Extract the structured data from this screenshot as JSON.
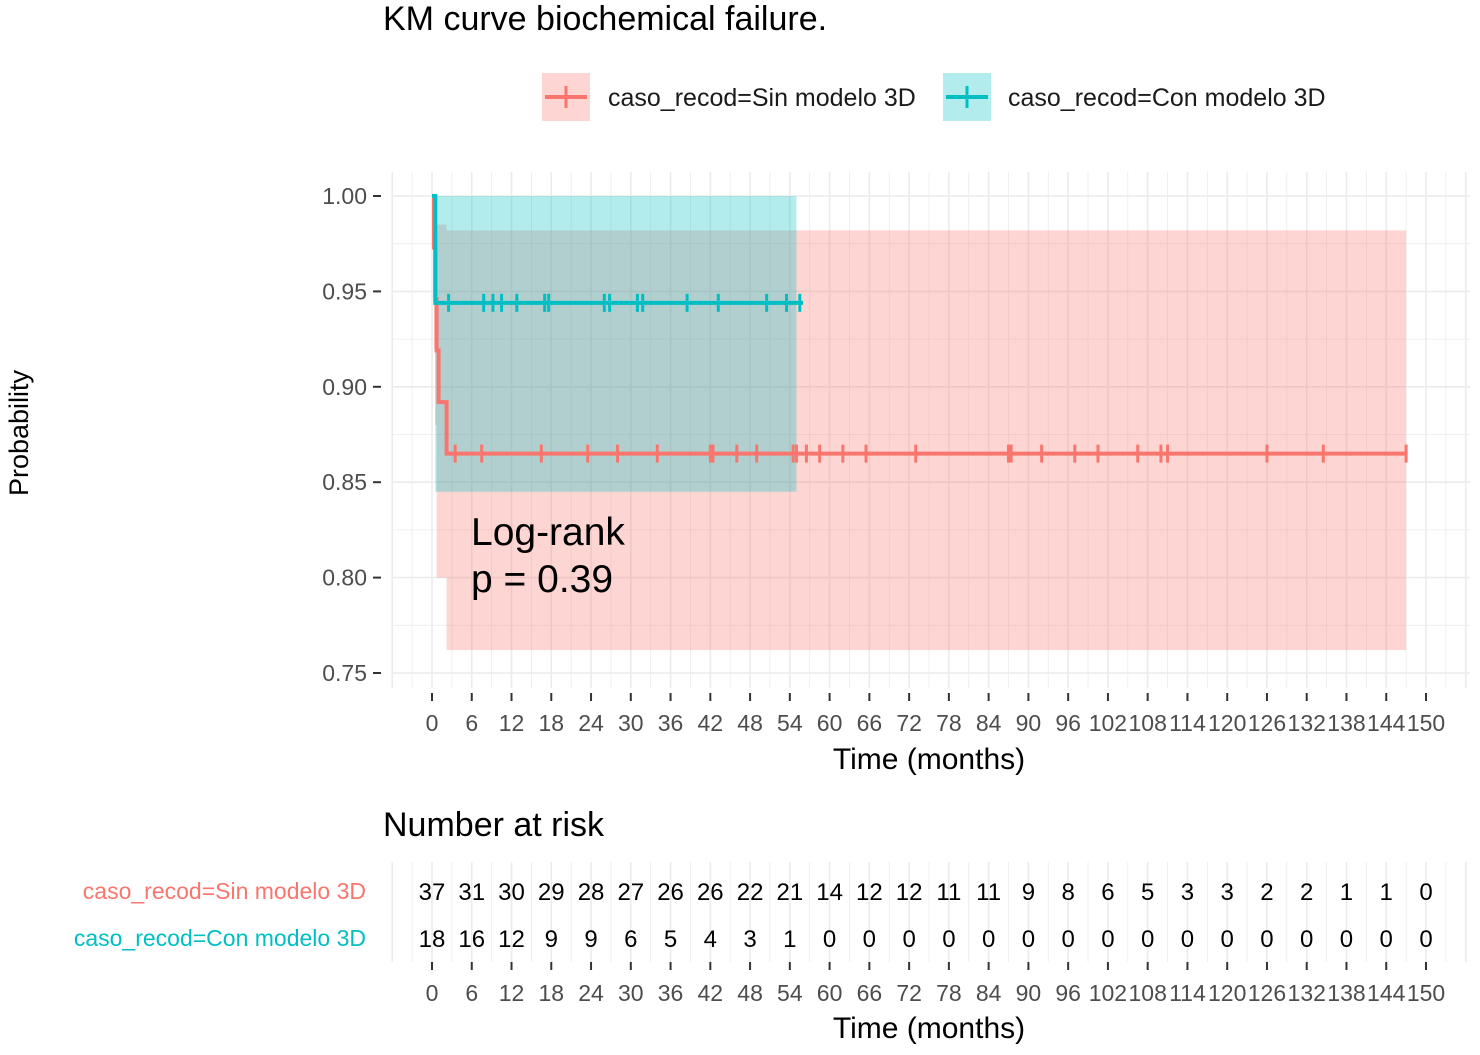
{
  "chart_data": [
    {
      "type": "line",
      "subtype": "kaplan-meier",
      "title": "KM curve biochemical failure.",
      "xlabel": "Time (months)",
      "ylabel": "Probability",
      "xlim": [
        0,
        150
      ],
      "ylim": [
        0.75,
        1.0
      ],
      "x_ticks": [
        0,
        6,
        12,
        18,
        24,
        30,
        36,
        42,
        48,
        54,
        60,
        66,
        72,
        78,
        84,
        90,
        96,
        102,
        108,
        114,
        120,
        126,
        132,
        138,
        144,
        150
      ],
      "x_tick_labels": [
        "0",
        "6",
        "12",
        "18",
        "24",
        "30",
        "36",
        "42",
        "48",
        "54",
        "60",
        "66",
        "72",
        "78",
        "84",
        "90",
        "96",
        "102",
        "108",
        "114",
        "120",
        "126",
        "132",
        "138",
        "144",
        "150"
      ],
      "y_ticks": [
        0.75,
        0.8,
        0.85,
        0.9,
        0.95,
        1.0
      ],
      "y_tick_labels": [
        "0.75",
        "0.80",
        "0.85",
        "0.90",
        "0.95",
        "1.00"
      ],
      "grid": true,
      "legend_position": "top",
      "annotation": {
        "line1": "Log-rank",
        "line2": "p = 0.39"
      },
      "series": [
        {
          "name": "caso_recod=Sin modelo 3D",
          "color": "#F8766D",
          "fill": "#F8766D",
          "steps": [
            [
              0,
              1.0
            ],
            [
              0.3,
              0.973
            ],
            [
              0.5,
              0.946
            ],
            [
              0.7,
              0.919
            ],
            [
              1.0,
              0.892
            ],
            [
              2.2,
              0.865
            ],
            [
              147,
              0.865
            ]
          ],
          "ci_steps": [
            [
              0,
              1.0,
              1.0
            ],
            [
              0.3,
              0.92,
              1.0
            ],
            [
              0.5,
              0.88,
              1.0
            ],
            [
              0.7,
              0.8,
              0.985
            ],
            [
              2.2,
              0.762,
              0.982
            ],
            [
              147,
              0.762,
              0.982
            ]
          ],
          "censored_times": [
            3.5,
            7.5,
            16.5,
            23.5,
            28,
            34,
            42,
            42.4,
            46,
            49,
            54.5,
            55,
            56.5,
            58.5,
            62,
            65.5,
            73,
            87,
            87.4,
            92,
            97,
            100.5,
            106.5,
            110,
            111,
            126,
            134.5,
            147
          ]
        },
        {
          "name": "caso_recod=Con modelo 3D",
          "color": "#00BFC4",
          "fill": "#00BFC4",
          "steps": [
            [
              0,
              1.0
            ],
            [
              0.5,
              0.944
            ],
            [
              56,
              0.944
            ]
          ],
          "ci_steps": [
            [
              0,
              1.0,
              1.0
            ],
            [
              0.5,
              0.845,
              1.0
            ],
            [
              55,
              0.845,
              1.0
            ]
          ],
          "censored_times": [
            2.5,
            7.8,
            9.2,
            10.5,
            12.8,
            17,
            17.6,
            26,
            26.8,
            31,
            31.8,
            38.5,
            43.2,
            50.5,
            53.5,
            55.5
          ]
        }
      ]
    },
    {
      "type": "table",
      "title": "Number at risk",
      "xlabel": "Time (months)",
      "times": [
        0,
        6,
        12,
        18,
        24,
        30,
        36,
        42,
        48,
        54,
        60,
        66,
        72,
        78,
        84,
        90,
        96,
        102,
        108,
        114,
        120,
        126,
        132,
        138,
        144,
        150
      ],
      "x_tick_labels": [
        "0",
        "6",
        "12",
        "18",
        "24",
        "30",
        "36",
        "42",
        "48",
        "54",
        "60",
        "66",
        "72",
        "78",
        "84",
        "90",
        "96",
        "102",
        "108",
        "114",
        "120",
        "126",
        "132",
        "138",
        "144",
        "150"
      ],
      "rows": [
        {
          "name": "caso_recod=Sin modelo 3D",
          "color": "#F8766D",
          "values": [
            37,
            31,
            30,
            29,
            28,
            27,
            26,
            26,
            22,
            21,
            14,
            12,
            12,
            11,
            11,
            9,
            8,
            6,
            5,
            3,
            3,
            2,
            2,
            1,
            1,
            0
          ]
        },
        {
          "name": "caso_recod=Con modelo 3D",
          "color": "#00BFC4",
          "values": [
            18,
            16,
            12,
            9,
            9,
            6,
            5,
            4,
            3,
            1,
            0,
            0,
            0,
            0,
            0,
            0,
            0,
            0,
            0,
            0,
            0,
            0,
            0,
            0,
            0,
            0
          ]
        }
      ]
    }
  ]
}
